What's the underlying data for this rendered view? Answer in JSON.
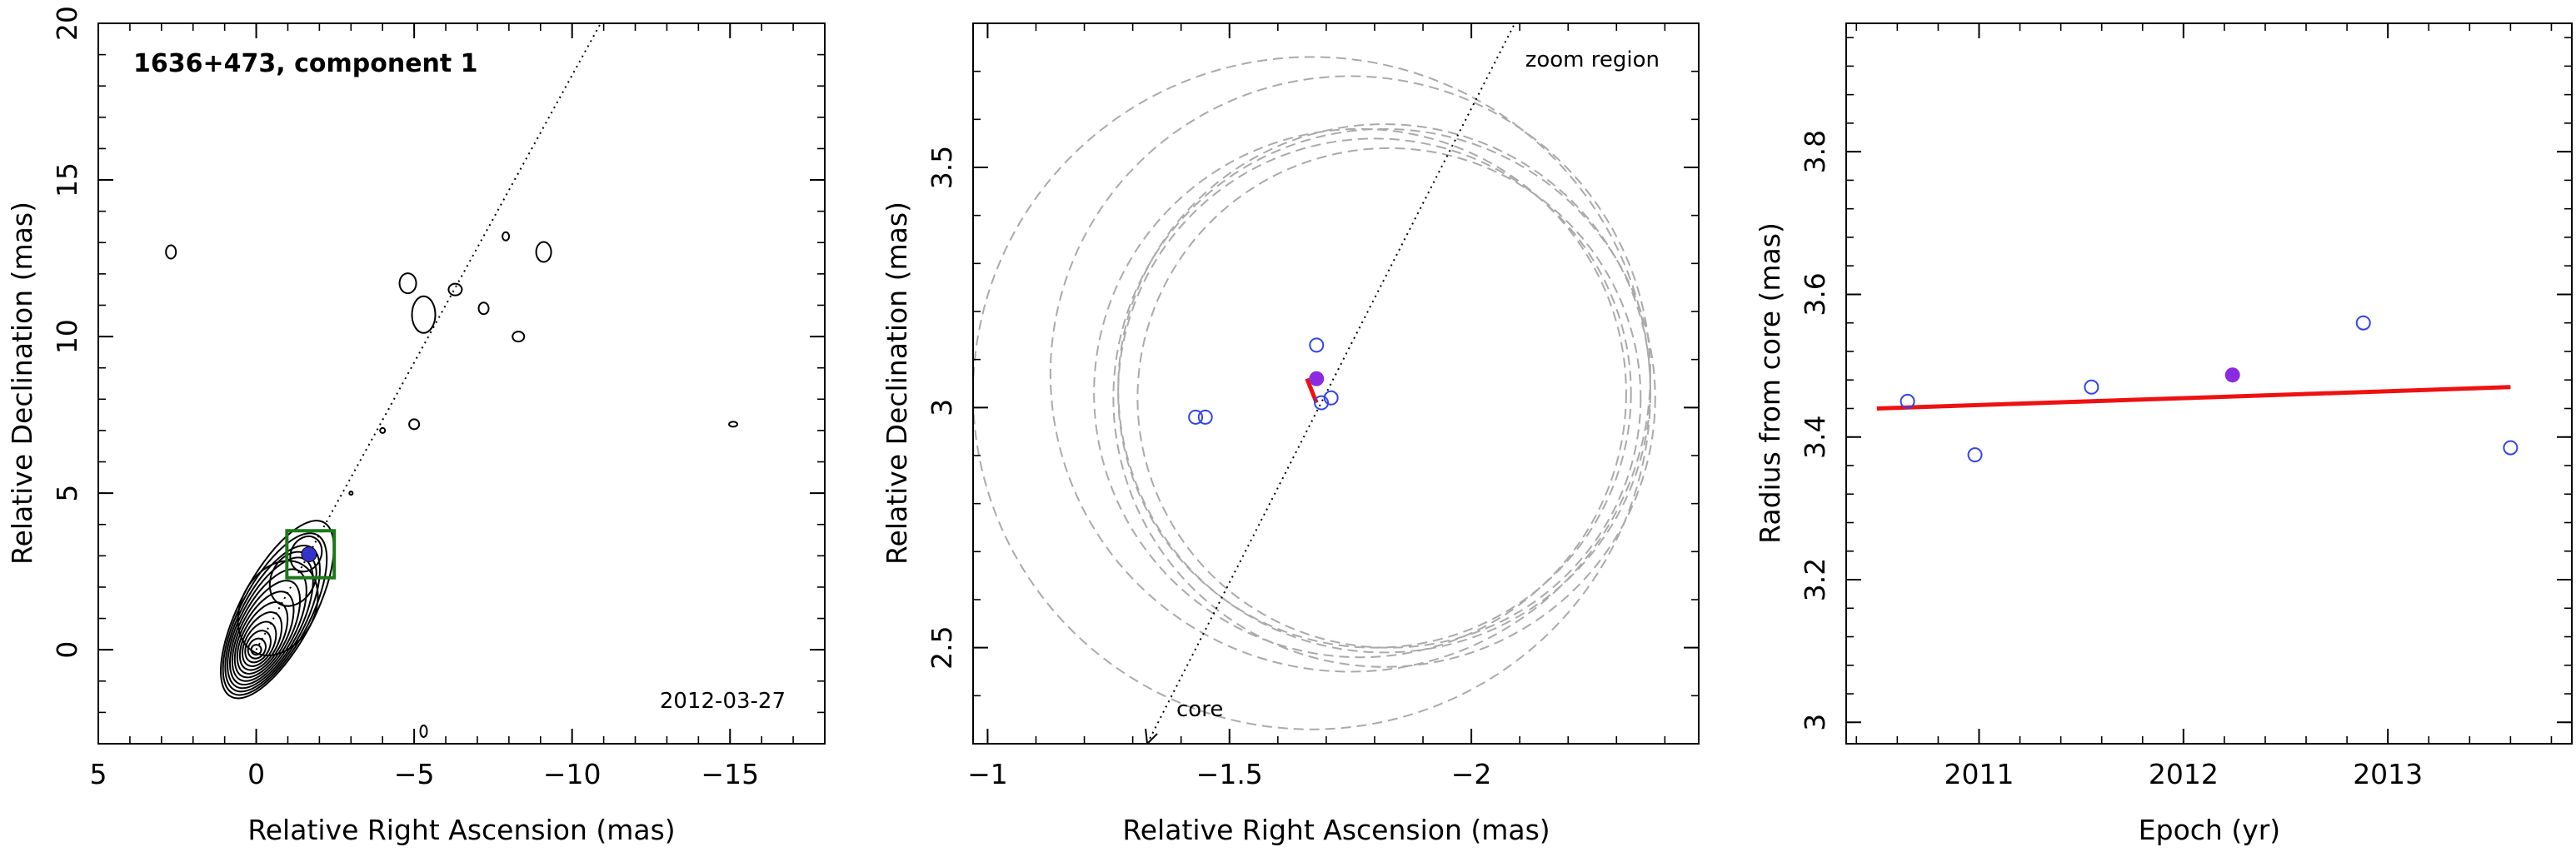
{
  "chart_data": [
    {
      "type": "contour",
      "title": "1636+473, component 1",
      "date": "2012-03-27",
      "xlabel": "Relative Right Ascension (mas)",
      "ylabel": "Relative Declination (mas)",
      "xlim": [
        5,
        -18
      ],
      "ylim": [
        -3,
        20
      ],
      "xticks": [
        5,
        0,
        -5,
        -10,
        -15
      ],
      "yticks": [
        0,
        5,
        10,
        15,
        20
      ],
      "core": [
        0,
        0
      ],
      "component_position": [
        -1.67,
        3.05
      ],
      "zoom_box": {
        "x_range": [
          -0.97,
          -2.47
        ],
        "y_range": [
          2.3,
          3.8
        ]
      },
      "direction_line": {
        "from": [
          0,
          0
        ],
        "angle_deg": -28.6
      },
      "colors": {
        "contour": "#000000",
        "zoom_box": "#1a7a1a",
        "component": "#3333cc"
      }
    },
    {
      "type": "scatter",
      "label": "zoom region",
      "core_label": "core",
      "xlabel": "Relative Right Ascension (mas)",
      "ylabel": "Relative Declination (mas)",
      "xlim": [
        -0.97,
        -2.47
      ],
      "ylim": [
        2.3,
        3.8
      ],
      "xticks": [
        -1,
        -1.5,
        -2
      ],
      "yticks": [
        2.5,
        3,
        3.5
      ],
      "points_open": [
        {
          "x": -1.43,
          "y": 2.98
        },
        {
          "x": -1.45,
          "y": 2.98
        },
        {
          "x": -1.68,
          "y": 3.13
        },
        {
          "x": -1.69,
          "y": 3.01
        },
        {
          "x": -1.71,
          "y": 3.02
        }
      ],
      "point_filled": {
        "x": -1.68,
        "y": 3.06
      },
      "fit_segment": [
        {
          "x": -1.66,
          "y": 3.06
        },
        {
          "x": -1.68,
          "y": 3.01
        }
      ],
      "ellipses": [
        {
          "cx": -1.67,
          "cy": 3.03,
          "r": 0.7
        },
        {
          "cx": -1.75,
          "cy": 3.07,
          "r": 0.62
        },
        {
          "cx": -1.8,
          "cy": 3.03,
          "r": 0.53
        },
        {
          "cx": -1.77,
          "cy": 3.03,
          "r": 0.55
        },
        {
          "cx": -1.82,
          "cy": 3.04,
          "r": 0.55
        },
        {
          "cx": -1.83,
          "cy": 3.02,
          "r": 0.52
        },
        {
          "cx": -1.82,
          "cy": 3.02,
          "r": 0.56
        }
      ],
      "colors": {
        "open": "#3344ee",
        "filled": "#8a2be2",
        "fit": "#ee1111",
        "ellipse": "#aaaaaa"
      }
    },
    {
      "type": "scatter",
      "xlabel": "Epoch (yr)",
      "ylabel": "Radius from core (mas)",
      "xlim": [
        2010.35,
        2013.9
      ],
      "ylim": [
        2.97,
        3.98
      ],
      "xticks": [
        2011,
        2012,
        2013
      ],
      "yticks": [
        3,
        3.2,
        3.4,
        3.6,
        3.8
      ],
      "points_open": [
        {
          "x": 2010.65,
          "y": 3.45
        },
        {
          "x": 2010.98,
          "y": 3.375
        },
        {
          "x": 2011.55,
          "y": 3.47
        },
        {
          "x": 2012.88,
          "y": 3.56
        },
        {
          "x": 2013.6,
          "y": 3.385
        }
      ],
      "point_filled": {
        "x": 2012.24,
        "y": 3.487
      },
      "fit_line": [
        {
          "x": 2010.5,
          "y": 3.44
        },
        {
          "x": 2013.6,
          "y": 3.47
        }
      ],
      "colors": {
        "open": "#3344ee",
        "filled": "#8a2be2",
        "fit": "#ee1111"
      }
    }
  ]
}
